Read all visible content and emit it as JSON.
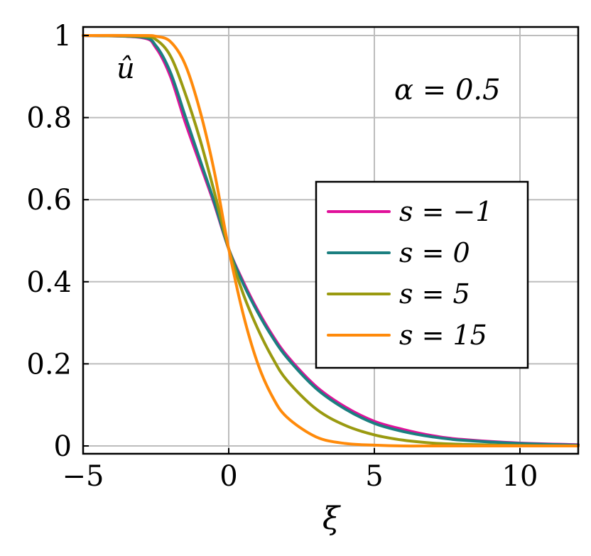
{
  "chart_data": {
    "type": "line",
    "title": "",
    "xlabel": "ξ",
    "ylabel": "",
    "xlim": [
      -5,
      12
    ],
    "ylim": [
      0,
      1
    ],
    "x_ticks": [
      "−5",
      "0",
      "5",
      "10"
    ],
    "y_ticks": [
      "0",
      "0.2",
      "0.4",
      "0.6",
      "0.8",
      "1"
    ],
    "grid": true,
    "legend_position": "center-right",
    "annotations": {
      "curve_label": "û",
      "parameter": "α = 0.5"
    },
    "series": [
      {
        "name": "s = −1",
        "color": "#e0109a",
        "x": [
          -5,
          -3,
          -2.5,
          -2,
          -1.5,
          -1,
          -0.5,
          0,
          0.5,
          1,
          1.5,
          2,
          3,
          4,
          5,
          6,
          7,
          8,
          10,
          12
        ],
        "y": [
          1.0,
          0.995,
          0.97,
          0.9,
          0.79,
          0.69,
          0.59,
          0.48,
          0.4,
          0.33,
          0.27,
          0.22,
          0.145,
          0.095,
          0.06,
          0.04,
          0.025,
          0.016,
          0.007,
          0.003
        ]
      },
      {
        "name": "s = 0",
        "color": "#1b7f80",
        "x": [
          -5,
          -3,
          -2.5,
          -2,
          -1.5,
          -1,
          -0.5,
          0,
          0.5,
          1,
          1.5,
          2,
          3,
          4,
          5,
          6,
          7,
          8,
          10,
          12
        ],
        "y": [
          1.0,
          0.996,
          0.975,
          0.91,
          0.805,
          0.7,
          0.595,
          0.48,
          0.395,
          0.325,
          0.265,
          0.215,
          0.14,
          0.09,
          0.055,
          0.035,
          0.022,
          0.014,
          0.006,
          0.002
        ]
      },
      {
        "name": "s = 5",
        "color": "#9a9a10",
        "x": [
          -5,
          -3,
          -2.5,
          -2,
          -1.5,
          -1,
          -0.5,
          0,
          0.5,
          1,
          1.5,
          2,
          3,
          4,
          5,
          6,
          7,
          8,
          10,
          12
        ],
        "y": [
          1.0,
          0.998,
          0.99,
          0.95,
          0.86,
          0.75,
          0.62,
          0.48,
          0.37,
          0.285,
          0.215,
          0.16,
          0.09,
          0.05,
          0.027,
          0.014,
          0.007,
          0.004,
          0.001,
          0.0
        ]
      },
      {
        "name": "s = 15",
        "color": "#ff8a0a",
        "x": [
          -5,
          -3,
          -2.5,
          -2,
          -1.5,
          -1,
          -0.5,
          0,
          0.5,
          1,
          1.5,
          2,
          3,
          4,
          5,
          6,
          7,
          8,
          10,
          12
        ],
        "y": [
          1.0,
          1.0,
          0.998,
          0.985,
          0.93,
          0.82,
          0.67,
          0.48,
          0.32,
          0.2,
          0.12,
          0.07,
          0.022,
          0.006,
          0.002,
          0.0,
          0.0,
          0.0,
          0.0,
          0.0
        ]
      }
    ]
  }
}
